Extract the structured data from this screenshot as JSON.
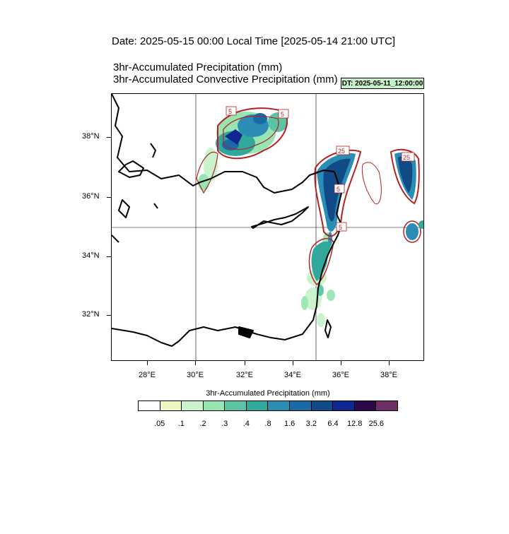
{
  "header": {
    "date_title": "Date: 2025-05-15  00:00 Local Time [2025-05-14  21:00 UTC]",
    "var_title_1": "3hr-Accumulated Precipitation   (mm)",
    "var_title_2": "3hr-Accumulated Convective Precipitation   (mm)",
    "dt_badge": "DT: 2025-05-11_12:00:00"
  },
  "map": {
    "lat_labels": [
      "38°N",
      "36°N",
      "34°N",
      "32°N"
    ],
    "lon_labels": [
      "28°E",
      "30°E",
      "32°E",
      "34°E",
      "36°E",
      "38°E"
    ],
    "contour_labels": [
      "5",
      "25",
      "5",
      "5",
      "25",
      "5"
    ],
    "colors": {
      "coast": "#000000",
      "contour": "#b22222"
    }
  },
  "colorbar": {
    "title": "3hr-Accumulated Precipitation  (mm)",
    "colors": [
      "#ffffff",
      "#ecf8c4",
      "#c8f3cc",
      "#98e5b2",
      "#5ac4a4",
      "#32a89c",
      "#2b8cb4",
      "#1a6aa8",
      "#114a86",
      "#0f2790",
      "#2a0a4a",
      "#6e3064"
    ],
    "labels": [
      ".05",
      ".1",
      ".2",
      ".3",
      ".4",
      ".8",
      "1.6",
      "3.2",
      "6.4",
      "12.8",
      "25.6"
    ]
  }
}
